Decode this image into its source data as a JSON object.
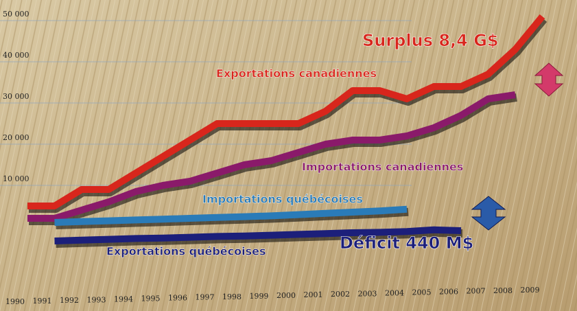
{
  "chart_data": {
    "type": "line",
    "categories": [
      "1990",
      "1991",
      "1992",
      "1993",
      "1994",
      "1995",
      "1996",
      "1997",
      "1998",
      "1999",
      "2000",
      "2001",
      "2002",
      "2003",
      "2004",
      "2005",
      "2006",
      "2007",
      "2008",
      "2009"
    ],
    "series": [
      {
        "name": "Exportations canadiennes",
        "color": "#d8261c",
        "values": [
          5000,
          5000,
          9000,
          9000,
          13000,
          17000,
          21000,
          25000,
          25000,
          25000,
          25000,
          28000,
          33000,
          33000,
          31000,
          34000,
          34000,
          37000,
          43000,
          51000
        ]
      },
      {
        "name": "Importations canadiennes",
        "color": "#8a1a6a",
        "values": [
          2000,
          2000,
          4000,
          6000,
          8500,
          10000,
          11000,
          13000,
          15000,
          16000,
          18000,
          20000,
          21000,
          21000,
          22000,
          24000,
          27000,
          31000,
          32000,
          null
        ]
      },
      {
        "name": "Importations québécoises",
        "color": "#2a7bb8",
        "values": [
          null,
          1000,
          1200,
          1400,
          1600,
          1800,
          2000,
          2200,
          2400,
          2600,
          2900,
          3200,
          3500,
          3800,
          4200,
          null,
          null,
          null,
          null,
          null
        ]
      },
      {
        "name": "Exportations québécoises",
        "color": "#1c1f7a",
        "values": [
          null,
          -3500,
          -3300,
          -3100,
          -2900,
          -2800,
          -2600,
          -2400,
          -2300,
          -2100,
          -1900,
          -1700,
          -1500,
          -1400,
          -1200,
          -800,
          -1000,
          null,
          null,
          null
        ]
      }
    ],
    "annotations": [
      {
        "text": "Surplus 8,4 G$",
        "color": "#d8261c"
      },
      {
        "text": "Déficit 440 M$",
        "color": "#1c1f7a"
      }
    ],
    "ylim": [
      -8000,
      52000
    ],
    "yticks": [
      {
        "value": 10000,
        "label": "10 000"
      },
      {
        "value": 20000,
        "label": "20 000"
      },
      {
        "value": 30000,
        "label": "30 000"
      },
      {
        "value": 40000,
        "label": "40 000"
      },
      {
        "value": 50000,
        "label": "50 000"
      }
    ],
    "grid": true
  }
}
